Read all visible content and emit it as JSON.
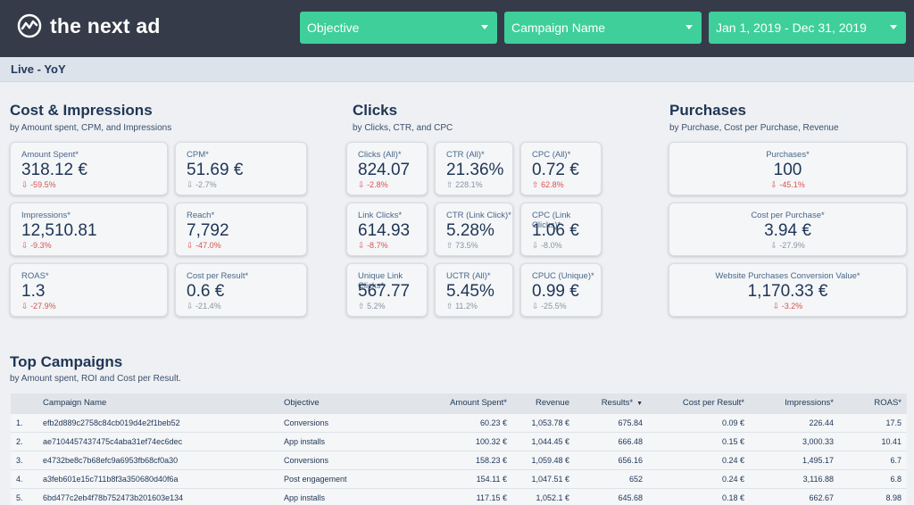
{
  "brand": {
    "name": "the next ad"
  },
  "filters": {
    "objective": "Objective",
    "campaign": "Campaign Name",
    "date_range": "Jan 1, 2019 - Dec 31, 2019"
  },
  "page_tab": "Live - YoY",
  "sections": {
    "cost": {
      "title": "Cost & Impressions",
      "subtitle": "by Amount spent, CPM, and Impressions"
    },
    "clicks": {
      "title": "Clicks",
      "subtitle": "by Clicks, CTR, and CPC"
    },
    "purchases": {
      "title": "Purchases",
      "subtitle": "by Purchase, Cost per Purchase, Revenue"
    },
    "top": {
      "title": "Top Campaigns",
      "subtitle": "by Amount spent, ROI and Cost per Result."
    }
  },
  "cards": {
    "amount_spent": {
      "label": "Amount Spent*",
      "value": "318.12 €",
      "change": "-59.5%",
      "dir": "down"
    },
    "cpm": {
      "label": "CPM*",
      "value": "51.69 €",
      "change": "-2.7%",
      "dir": "down"
    },
    "impressions": {
      "label": "Impressions*",
      "value": "12,510.81",
      "change": "-9.3%",
      "dir": "down"
    },
    "reach": {
      "label": "Reach*",
      "value": "7,792",
      "change": "-47.0%",
      "dir": "down"
    },
    "roas": {
      "label": "ROAS*",
      "value": "1.3",
      "change": "-27.9%",
      "dir": "down"
    },
    "cost_per_result": {
      "label": "Cost per Result*",
      "value": "0.6 €",
      "change": "-21.4%",
      "dir": "down"
    },
    "clicks_all": {
      "label": "Clicks (All)*",
      "value": "824.07",
      "change": "-2.8%",
      "dir": "down"
    },
    "ctr_all": {
      "label": "CTR (All)*",
      "value": "21.36%",
      "change": "228.1%",
      "dir": "up"
    },
    "cpc_all": {
      "label": "CPC (All)*",
      "value": "0.72 €",
      "change": "62.8%",
      "dir": "up"
    },
    "link_clicks": {
      "label": "Link Clicks*",
      "value": "614.93",
      "change": "-8.7%",
      "dir": "down"
    },
    "ctr_link": {
      "label": "CTR (Link Click)*",
      "value": "5.28%",
      "change": "73.5%",
      "dir": "up"
    },
    "cpc_link": {
      "label": "CPC (Link Clicks)*",
      "value": "1.06 €",
      "change": "-8.0%",
      "dir": "down"
    },
    "unique_link_clicks": {
      "label": "Unique Link Clicks*",
      "value": "567.77",
      "change": "5.2%",
      "dir": "up"
    },
    "uctr_all": {
      "label": "UCTR (All)*",
      "value": "5.45%",
      "change": "11.2%",
      "dir": "up"
    },
    "cpuc_unique": {
      "label": "CPUC (Unique)*",
      "value": "0.99 €",
      "change": "-25.5%",
      "dir": "down"
    },
    "purchases": {
      "label": "Purchases*",
      "value": "100",
      "change": "-45.1%",
      "dir": "down"
    },
    "cost_per_purchase": {
      "label": "Cost per Purchase*",
      "value": "3.94 €",
      "change": "-27.9%",
      "dir": "down"
    },
    "conv_value": {
      "label": "Website Purchases Conversion Value*",
      "value": "1,170.33 €",
      "change": "-3.2%",
      "dir": "down"
    }
  },
  "colors": {
    "negative": "#d9534f",
    "neutral": "#8a94a1",
    "accent": "#3ecf9b",
    "topbar": "#353b48"
  },
  "table": {
    "headers": [
      "Campaign Name",
      "Objective",
      "Amount Spent*",
      "Revenue",
      "Results*",
      "Cost per Result*",
      "Impressions*",
      "ROAS*"
    ],
    "rows": [
      [
        "1.",
        "efb2d889c2758c84cb019d4e2f1beb52",
        "Conversions",
        "60.23 €",
        "1,053.78 €",
        "675.84",
        "0.09 €",
        "226.44",
        "17.5"
      ],
      [
        "2.",
        "ae7104457437475c4aba31ef74ec6dec",
        "App installs",
        "100.32 €",
        "1,044.45 €",
        "666.48",
        "0.15 €",
        "3,000.33",
        "10.41"
      ],
      [
        "3.",
        "e4732be8c7b68efc9a6953fb68cf0a30",
        "Conversions",
        "158.23 €",
        "1,059.48 €",
        "656.16",
        "0.24 €",
        "1,495.17",
        "6.7"
      ],
      [
        "4.",
        "a3feb601e15c711b8f3a350680d40f6a",
        "Post engagement",
        "154.11 €",
        "1,047.51 €",
        "652",
        "0.24 €",
        "3,116.88",
        "6.8"
      ],
      [
        "5.",
        "6bd477c2eb4f78b752473b201603e134",
        "App installs",
        "117.15 €",
        "1,052.1 €",
        "645.68",
        "0.18 €",
        "662.67",
        "8.98"
      ]
    ]
  }
}
